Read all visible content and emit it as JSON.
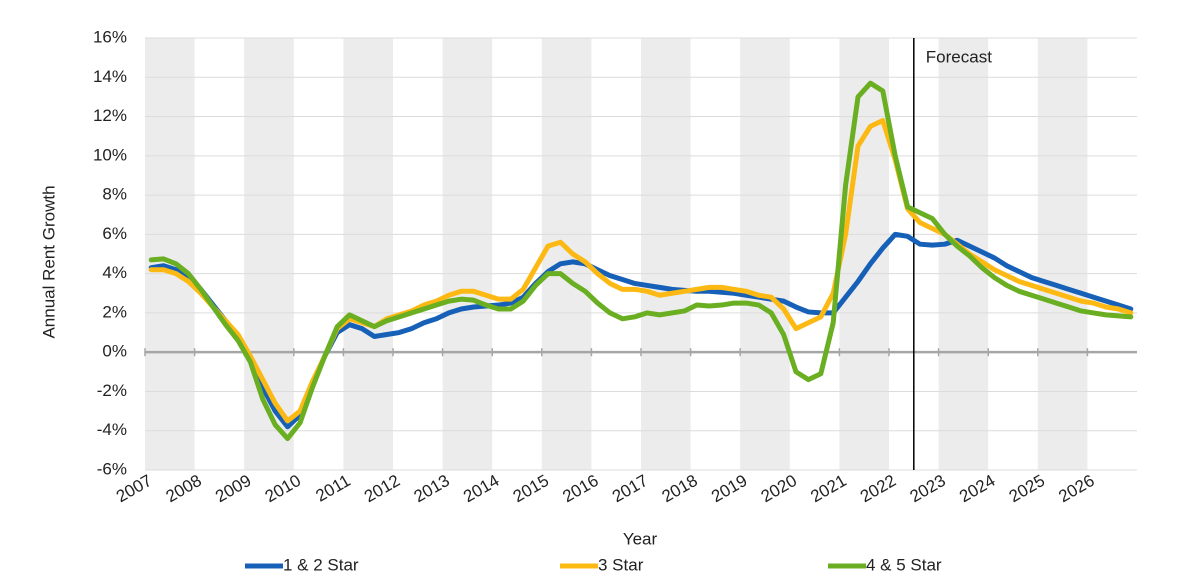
{
  "chart_data": {
    "type": "line",
    "xlabel": "Year",
    "ylabel": "Annual Rent Growth",
    "x": [
      2007.125,
      2007.375,
      2007.625,
      2007.875,
      2008.125,
      2008.375,
      2008.625,
      2008.875,
      2009.125,
      2009.375,
      2009.625,
      2009.875,
      2010.125,
      2010.375,
      2010.625,
      2010.875,
      2011.125,
      2011.375,
      2011.625,
      2011.875,
      2012.125,
      2012.375,
      2012.625,
      2012.875,
      2013.125,
      2013.375,
      2013.625,
      2013.875,
      2014.125,
      2014.375,
      2014.625,
      2014.875,
      2015.125,
      2015.375,
      2015.625,
      2015.875,
      2016.125,
      2016.375,
      2016.625,
      2016.875,
      2017.125,
      2017.375,
      2017.625,
      2017.875,
      2018.125,
      2018.375,
      2018.625,
      2018.875,
      2019.125,
      2019.375,
      2019.625,
      2019.875,
      2020.125,
      2020.375,
      2020.625,
      2020.875,
      2021.125,
      2021.375,
      2021.625,
      2021.875,
      2022.125,
      2022.375,
      2022.625,
      2022.875,
      2023.125,
      2023.375,
      2023.625,
      2023.875,
      2024.125,
      2024.375,
      2024.625,
      2024.875,
      2025.125,
      2025.375,
      2025.625,
      2025.875,
      2026.125,
      2026.375,
      2026.625,
      2026.875
    ],
    "series": [
      {
        "name": "1 & 2 Star",
        "color": "#1660b8",
        "values": [
          4.3,
          4.4,
          4.2,
          3.8,
          3.2,
          2.4,
          1.6,
          0.8,
          -0.3,
          -1.8,
          -3.0,
          -3.8,
          -3.2,
          -1.6,
          -0.2,
          1.0,
          1.4,
          1.2,
          0.8,
          0.9,
          1.0,
          1.2,
          1.5,
          1.7,
          2.0,
          2.2,
          2.3,
          2.35,
          2.4,
          2.5,
          2.8,
          3.5,
          4.1,
          4.5,
          4.6,
          4.5,
          4.2,
          3.9,
          3.7,
          3.5,
          3.4,
          3.3,
          3.2,
          3.15,
          3.1,
          3.1,
          3.05,
          3.0,
          2.9,
          2.8,
          2.7,
          2.6,
          2.3,
          2.05,
          2.0,
          2.0,
          2.8,
          3.6,
          4.5,
          5.3,
          6.0,
          5.9,
          5.5,
          5.45,
          5.5,
          5.7,
          5.4,
          5.1,
          4.8,
          4.4,
          4.1,
          3.8,
          3.6,
          3.4,
          3.2,
          3.0,
          2.8,
          2.6,
          2.4,
          2.2
        ]
      },
      {
        "name": "3 Star",
        "color": "#fdb913",
        "values": [
          4.2,
          4.2,
          4.0,
          3.6,
          3.0,
          2.3,
          1.6,
          0.9,
          -0.2,
          -1.4,
          -2.6,
          -3.5,
          -3.0,
          -1.5,
          -0.2,
          1.2,
          1.7,
          1.5,
          1.3,
          1.7,
          1.9,
          2.1,
          2.4,
          2.6,
          2.9,
          3.1,
          3.1,
          2.9,
          2.7,
          2.7,
          3.2,
          4.3,
          5.4,
          5.6,
          5.0,
          4.6,
          4.0,
          3.5,
          3.2,
          3.2,
          3.1,
          2.9,
          3.0,
          3.1,
          3.2,
          3.3,
          3.3,
          3.2,
          3.1,
          2.9,
          2.8,
          2.2,
          1.2,
          1.5,
          1.8,
          3.0,
          6.0,
          10.5,
          11.5,
          11.8,
          9.8,
          7.3,
          6.6,
          6.3,
          6.0,
          5.5,
          5.0,
          4.6,
          4.2,
          3.9,
          3.6,
          3.4,
          3.2,
          3.0,
          2.8,
          2.6,
          2.5,
          2.3,
          2.2,
          2.0
        ]
      },
      {
        "name": "4 & 5 Star",
        "color": "#6aae22",
        "values": [
          4.7,
          4.75,
          4.5,
          4.0,
          3.2,
          2.3,
          1.4,
          0.6,
          -0.5,
          -2.4,
          -3.7,
          -4.4,
          -3.6,
          -1.8,
          -0.2,
          1.3,
          1.9,
          1.6,
          1.3,
          1.6,
          1.8,
          2.0,
          2.2,
          2.4,
          2.6,
          2.7,
          2.65,
          2.4,
          2.2,
          2.2,
          2.6,
          3.4,
          4.0,
          4.0,
          3.5,
          3.1,
          2.5,
          2.0,
          1.7,
          1.8,
          2.0,
          1.9,
          2.0,
          2.1,
          2.4,
          2.35,
          2.4,
          2.5,
          2.5,
          2.4,
          2.0,
          0.9,
          -1.0,
          -1.4,
          -1.1,
          1.5,
          8.5,
          13.0,
          13.7,
          13.3,
          10.0,
          7.4,
          7.1,
          6.8,
          6.0,
          5.4,
          4.9,
          4.3,
          3.8,
          3.4,
          3.1,
          2.9,
          2.7,
          2.5,
          2.3,
          2.1,
          2.0,
          1.9,
          1.85,
          1.8
        ]
      }
    ],
    "xlim": [
      2007,
      2027
    ],
    "xticks": [
      2007,
      2008,
      2009,
      2010,
      2011,
      2012,
      2013,
      2014,
      2015,
      2016,
      2017,
      2018,
      2019,
      2020,
      2021,
      2022,
      2023,
      2024,
      2025,
      2026
    ],
    "ylim": [
      -6,
      16
    ],
    "yticks": [
      {
        "value": -6,
        "label": "-6%"
      },
      {
        "value": -4,
        "label": "-4%"
      },
      {
        "value": -2,
        "label": "-2%"
      },
      {
        "value": 0,
        "label": "0%"
      },
      {
        "value": 2,
        "label": "2%"
      },
      {
        "value": 4,
        "label": "4%"
      },
      {
        "value": 6,
        "label": "6%"
      },
      {
        "value": 8,
        "label": "8%"
      },
      {
        "value": 10,
        "label": "10%"
      },
      {
        "value": 12,
        "label": "12%"
      },
      {
        "value": 14,
        "label": "14%"
      },
      {
        "value": 16,
        "label": "16%"
      }
    ],
    "grid": true,
    "legend": "bottom",
    "forecast": {
      "x": 2022.5,
      "label": "Forecast"
    }
  }
}
